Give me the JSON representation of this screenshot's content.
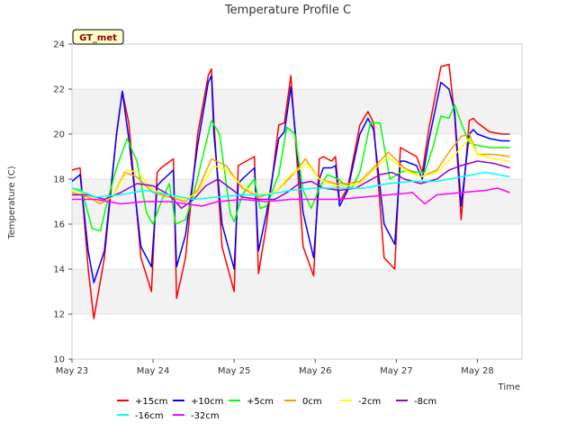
{
  "chart_data": {
    "type": "line",
    "title": "Temperature Profile C",
    "xlabel": "Time",
    "ylabel": "Temperature (C)",
    "badge": "GT_met",
    "ylim": [
      10,
      24
    ],
    "yticks": [
      10,
      12,
      14,
      16,
      18,
      20,
      22,
      24
    ],
    "xlim": [
      0,
      5.55
    ],
    "xticks": [
      0,
      1,
      2,
      3,
      4,
      5
    ],
    "xtick_labels": [
      "May 23",
      "May 24",
      "May 25",
      "May 26",
      "May 27",
      "May 28"
    ],
    "x_unit": "days since May 23 00:00",
    "bands": [
      [
        12,
        14
      ],
      [
        16,
        18
      ],
      [
        20,
        22
      ]
    ],
    "band_color": "#f2f2f2",
    "series": [
      {
        "name": "+15cm",
        "color": "#ff0000",
        "x": [
          0,
          0.1,
          0.2,
          0.27,
          0.4,
          0.55,
          0.62,
          0.7,
          0.85,
          0.98,
          1.05,
          1.1,
          1.25,
          1.29,
          1.4,
          1.55,
          1.68,
          1.72,
          1.75,
          1.85,
          2.0,
          2.05,
          2.1,
          2.25,
          2.3,
          2.4,
          2.55,
          2.62,
          2.7,
          2.85,
          2.98,
          3.05,
          3.1,
          3.2,
          3.25,
          3.3,
          3.4,
          3.55,
          3.65,
          3.72,
          3.85,
          3.98,
          4.05,
          4.1,
          4.25,
          4.32,
          4.4,
          4.55,
          4.65,
          4.72,
          4.8,
          4.9,
          4.95,
          5.0,
          5.15,
          5.3,
          5.4
        ],
        "y": [
          18.4,
          18.5,
          14,
          11.8,
          14.5,
          20,
          21.9,
          20.5,
          14.5,
          13,
          18.3,
          18.5,
          18.9,
          12.7,
          14.5,
          20,
          22.6,
          22.9,
          20.5,
          15,
          13,
          18.6,
          18.7,
          19,
          13.8,
          16,
          20.4,
          20.5,
          22.6,
          15,
          13.7,
          18.9,
          19,
          18.8,
          19,
          17,
          17.6,
          20.4,
          21,
          20.5,
          14.5,
          14,
          19.4,
          19.3,
          19,
          18.3,
          20.2,
          23,
          23.1,
          20.8,
          16.2,
          20.6,
          20.7,
          20.5,
          20.1,
          20,
          20
        ]
      },
      {
        "name": "+10cm",
        "color": "#0000ff",
        "x": [
          0,
          0.1,
          0.2,
          0.27,
          0.4,
          0.55,
          0.62,
          0.7,
          0.85,
          0.98,
          1.05,
          1.1,
          1.25,
          1.29,
          1.4,
          1.55,
          1.68,
          1.72,
          1.75,
          1.85,
          2.0,
          2.05,
          2.1,
          2.25,
          2.3,
          2.4,
          2.55,
          2.62,
          2.7,
          2.85,
          2.98,
          3.05,
          3.1,
          3.2,
          3.25,
          3.3,
          3.4,
          3.55,
          3.65,
          3.72,
          3.85,
          3.98,
          4.05,
          4.1,
          4.25,
          4.32,
          4.4,
          4.55,
          4.65,
          4.72,
          4.8,
          4.9,
          4.95,
          5.0,
          5.15,
          5.3,
          5.4
        ],
        "y": [
          17.9,
          18.2,
          14.8,
          13.4,
          14.8,
          20,
          21.9,
          19.8,
          15,
          14.1,
          17.7,
          17.9,
          18.4,
          14.1,
          15.5,
          19.5,
          22.3,
          22.6,
          20,
          16,
          14,
          17.8,
          18,
          18.5,
          14.8,
          16.5,
          19.8,
          20.1,
          22.1,
          16.5,
          14.5,
          18,
          18.5,
          18.5,
          18.6,
          16.8,
          17.5,
          20,
          20.7,
          20.2,
          16,
          15.1,
          18.8,
          18.8,
          18.6,
          18,
          19.7,
          22.3,
          22,
          21,
          16.8,
          20,
          20.2,
          20,
          19.8,
          19.7,
          19.7
        ]
      },
      {
        "name": "+5cm",
        "color": "#00ff00",
        "x": [
          0,
          0.12,
          0.25,
          0.35,
          0.45,
          0.55,
          0.68,
          0.8,
          0.92,
          1.0,
          1.1,
          1.2,
          1.28,
          1.4,
          1.5,
          1.6,
          1.72,
          1.82,
          1.95,
          2.0,
          2.1,
          2.25,
          2.32,
          2.4,
          2.55,
          2.65,
          2.75,
          2.85,
          2.95,
          3.05,
          3.15,
          3.28,
          3.35,
          3.45,
          3.55,
          3.68,
          3.8,
          3.92,
          4.05,
          4.15,
          4.25,
          4.35,
          4.45,
          4.55,
          4.65,
          4.72,
          4.8,
          4.9,
          5.0,
          5.15,
          5.4
        ],
        "y": [
          17.6,
          17.5,
          15.8,
          15.7,
          17.2,
          18.5,
          19.8,
          18.8,
          16.5,
          16,
          17,
          17.8,
          16,
          16.2,
          17.3,
          18.8,
          20.6,
          20,
          16.5,
          16.1,
          17.3,
          18,
          16.7,
          16.8,
          18.2,
          20.3,
          20,
          17.5,
          16.7,
          17.6,
          18.2,
          18,
          17.8,
          17.6,
          18.3,
          20.5,
          20.5,
          18,
          18.3,
          18.4,
          18.3,
          18.3,
          19.4,
          20.8,
          20.7,
          21.3,
          20.5,
          19.6,
          19.5,
          19.4,
          19.4
        ]
      },
      {
        "name": "0cm",
        "color": "#ff9900",
        "x": [
          0,
          0.2,
          0.35,
          0.5,
          0.65,
          0.8,
          1.0,
          1.2,
          1.4,
          1.55,
          1.72,
          1.9,
          2.1,
          2.3,
          2.5,
          2.7,
          2.88,
          3.05,
          3.25,
          3.4,
          3.55,
          3.72,
          3.9,
          4.1,
          4.3,
          4.5,
          4.65,
          4.8,
          4.9,
          5.0,
          5.2,
          5.4
        ],
        "y": [
          17.4,
          17.2,
          16.9,
          17.2,
          18.3,
          18.1,
          17.4,
          17.2,
          17.0,
          17.5,
          18.9,
          18.6,
          17.6,
          17.2,
          17.4,
          18.1,
          18.9,
          18.0,
          17.8,
          17.8,
          17.9,
          18.5,
          19.2,
          18.5,
          18.1,
          18.4,
          19.2,
          19.9,
          20.0,
          19.1,
          19.1,
          19.0
        ]
      },
      {
        "name": "-2cm",
        "color": "#ffff00",
        "x": [
          0,
          0.2,
          0.35,
          0.5,
          0.68,
          0.82,
          1.0,
          1.2,
          1.4,
          1.55,
          1.75,
          1.9,
          2.1,
          2.3,
          2.5,
          2.7,
          2.9,
          3.05,
          3.25,
          3.4,
          3.55,
          3.75,
          3.9,
          4.1,
          4.3,
          4.5,
          4.65,
          4.8,
          4.9,
          5.0,
          5.2,
          5.4
        ],
        "y": [
          17.5,
          17.3,
          17.0,
          17.2,
          18.4,
          18.3,
          17.5,
          17.3,
          17.1,
          17.4,
          18.6,
          18.4,
          17.7,
          17.3,
          17.4,
          18.2,
          18.7,
          18.0,
          17.7,
          17.7,
          17.8,
          18.5,
          19.0,
          18.4,
          18.1,
          18.3,
          18.8,
          19.4,
          19.8,
          19.1,
          18.9,
          18.8
        ]
      },
      {
        "name": "-8cm",
        "color": "#9900cc",
        "x": [
          0,
          0.2,
          0.4,
          0.6,
          0.8,
          1.0,
          1.2,
          1.35,
          1.5,
          1.65,
          1.8,
          1.95,
          2.1,
          2.3,
          2.5,
          2.65,
          2.8,
          2.95,
          3.1,
          3.3,
          3.5,
          3.65,
          3.8,
          3.95,
          4.1,
          4.3,
          4.5,
          4.65,
          4.8,
          5.0,
          5.2,
          5.4
        ],
        "y": [
          17.3,
          17.3,
          17.1,
          17.4,
          17.8,
          17.7,
          17.3,
          16.7,
          17.1,
          17.7,
          18.0,
          17.6,
          17.2,
          17.1,
          17.1,
          17.4,
          17.8,
          17.9,
          17.6,
          17.5,
          17.6,
          17.9,
          18.2,
          18.3,
          18.0,
          17.8,
          18.0,
          18.4,
          18.6,
          18.8,
          18.7,
          18.5
        ]
      },
      {
        "name": "-16cm",
        "color": "#00ffff",
        "x": [
          0,
          0.3,
          0.6,
          0.9,
          1.2,
          1.5,
          1.8,
          2.1,
          2.4,
          2.7,
          3.0,
          3.3,
          3.6,
          3.9,
          4.2,
          4.5,
          4.8,
          5.1,
          5.4
        ],
        "y": [
          17.6,
          17.2,
          17.3,
          17.5,
          17.3,
          17.1,
          17.2,
          17.3,
          17.3,
          17.5,
          17.6,
          17.6,
          17.6,
          17.8,
          17.9,
          17.9,
          18.1,
          18.3,
          18.1
        ]
      },
      {
        "name": "-32cm",
        "color": "#ff00ff",
        "x": [
          0,
          0.3,
          0.6,
          0.9,
          1.2,
          1.4,
          1.6,
          1.8,
          2.1,
          2.4,
          2.7,
          3.0,
          3.3,
          3.6,
          3.9,
          4.2,
          4.35,
          4.5,
          4.8,
          5.1,
          5.25,
          5.4
        ],
        "y": [
          17.1,
          17.1,
          16.9,
          17.0,
          17.0,
          16.9,
          16.8,
          17.0,
          17.1,
          17.0,
          17.1,
          17.1,
          17.1,
          17.2,
          17.3,
          17.4,
          16.9,
          17.3,
          17.4,
          17.5,
          17.6,
          17.4
        ]
      }
    ]
  }
}
